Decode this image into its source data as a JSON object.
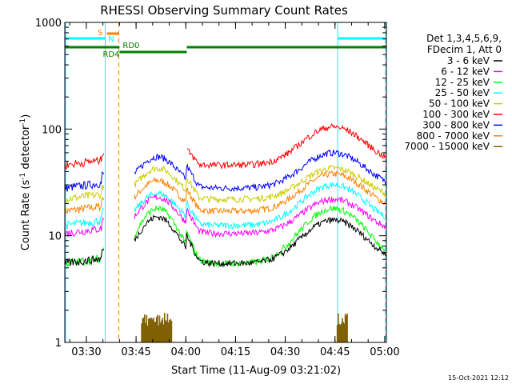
{
  "chart_data": {
    "type": "line",
    "title": "RHESSI Observing Summary Count Rates",
    "xlabel": "Start Time (11-Aug-09 03:21:02)",
    "ylabel_main": "Count Rate (s",
    "ylabel_sup1": "-1",
    "ylabel_mid": " detector",
    "ylabel_sup2": "-1",
    "ylabel_end": ")",
    "yscale": "log",
    "ylim": [
      1,
      1000
    ],
    "xlim_minutes": [
      3.5,
      100.5
    ],
    "x_ticks": [
      {
        "label": "03:30",
        "minutes": 10
      },
      {
        "label": "03:45",
        "minutes": 25
      },
      {
        "label": "04:00",
        "minutes": 40
      },
      {
        "label": "04:15",
        "minutes": 55
      },
      {
        "label": "04:30",
        "minutes": 70
      },
      {
        "label": "04:45",
        "minutes": 85
      },
      {
        "label": "05:00",
        "minutes": 100
      }
    ],
    "y_ticks": [
      {
        "label": "1",
        "value": 1
      },
      {
        "label": "10",
        "value": 10
      },
      {
        "label": "100",
        "value": 100
      },
      {
        "label": "1000",
        "value": 1000
      }
    ],
    "legend_header": [
      "Det 1,3,4,5,6,9,",
      "FDecim 1, Att 0"
    ],
    "legend_position": "top-right",
    "series": [
      {
        "name": "3 - 6 keV",
        "color": "#000000",
        "base": 5.5,
        "hump1": 15,
        "hump2": 14,
        "gap": 5.8
      },
      {
        "name": "6 - 12 keV",
        "color": "#ff00ff",
        "base": 10.5,
        "hump1": 23,
        "hump2": 22,
        "gap": 11
      },
      {
        "name": "12 - 25 keV",
        "color": "#00ff00",
        "base": 5.5,
        "hump1": 18,
        "hump2": 18,
        "gap": 6
      },
      {
        "name": "25 - 50 keV",
        "color": "#00ffff",
        "base": 12.5,
        "hump1": 25,
        "hump2": 30,
        "gap": 13
      },
      {
        "name": "50 - 100 keV",
        "color": "#cccc00",
        "base": 22,
        "hump1": 43,
        "hump2": 43,
        "gap": 25
      },
      {
        "name": "100 - 300 keV",
        "color": "#ff0000",
        "base": 46,
        "hump1": 0,
        "hump2": 105,
        "gap": 50
      },
      {
        "name": "300 - 800 keV",
        "color": "#0000ff",
        "base": 28,
        "hump1": 55,
        "hump2": 60,
        "gap": 30
      },
      {
        "name": "800 - 7000 keV",
        "color": "#ff8000",
        "base": 17,
        "hump1": 33,
        "hump2": 38,
        "gap": 19
      },
      {
        "name": "7000 - 15000 keV",
        "color": "#806000",
        "base": 1,
        "hump1": 1.9,
        "hump2": 1.9,
        "gap": 1
      }
    ],
    "annotations": [
      {
        "label": "S",
        "color": "#ff8000"
      },
      {
        "label": "N",
        "color": "#00ffff"
      },
      {
        "label": "RD4",
        "color": "#008000"
      },
      {
        "label": "RD0",
        "color": "#008000"
      }
    ],
    "timestamp": "15-Oct-2021 12:12"
  }
}
